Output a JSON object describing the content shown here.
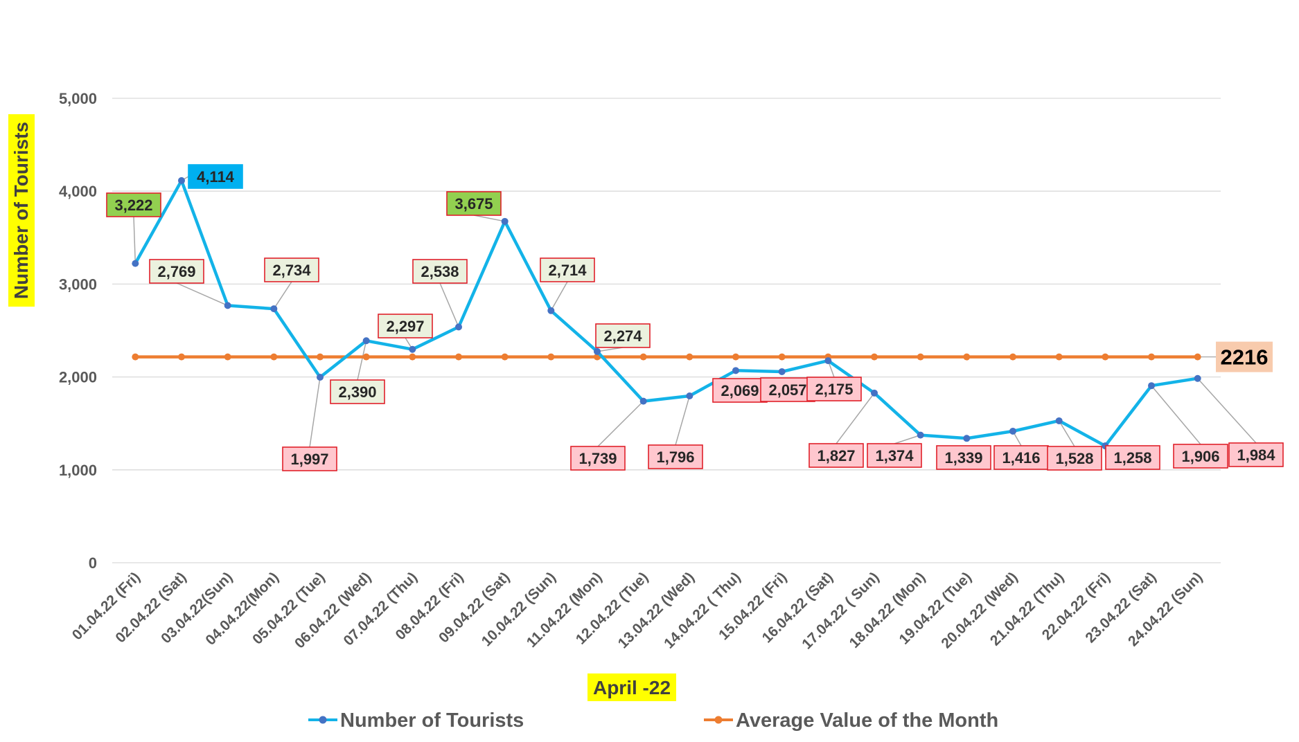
{
  "chart_data": {
    "type": "line",
    "xlabel": "April -22",
    "ylabel": "Number of Tourists",
    "ylim": [
      0,
      5000
    ],
    "yticks": [
      "0",
      "1,000",
      "2,000",
      "3,000",
      "4,000",
      "5,000"
    ],
    "grid": "horizontal",
    "legend_position": "bottom",
    "categories": [
      "01.04.22 (Fri)",
      "02.04.22 (Sat)",
      "03.04.22(Sun)",
      "04.04.22(Mon)",
      "05.04.22 (Tue)",
      "06.04.22 (Wed)",
      "07.04.22 (Thu)",
      "08.04.22 (Fri)",
      "09.04.22 (Sat)",
      "10.04.22 (Sun)",
      "11.04.22 (Mon)",
      "12.04.22 (Tue)",
      "13.04.22 (Wed)",
      "14.04.22 ( Thu)",
      "15.04.22 (Fri)",
      "16.04.22 (Sat)",
      "17.04.22 ( Sun)",
      "18.04.22 (Mon)",
      "19.04.22 (Tue)",
      "20.04.22 (Wed)",
      "21.04.22 (Thu)",
      "22.04.22 (Fri)",
      "23.04.22 (Sat)",
      "24.04.22 (Sun)"
    ],
    "series": [
      {
        "name": "Number of Tourists",
        "color": "#13B3E8",
        "marker_color": "#4472C4",
        "values": [
          3222,
          4114,
          2769,
          2734,
          1997,
          2390,
          2297,
          2538,
          3675,
          2714,
          2274,
          1739,
          1796,
          2069,
          2057,
          2175,
          1827,
          1374,
          1339,
          1416,
          1528,
          1258,
          1906,
          1984
        ],
        "labels": [
          "3,222",
          "4,114",
          "2,769",
          "2,734",
          "1,997",
          "2,390",
          "2,297",
          "2,538",
          "3,675",
          "2,714",
          "2,274",
          "1,739",
          "1,796",
          "2,069",
          "2,057",
          "2,175",
          "1,827",
          "1,374",
          "1,339",
          "1,416",
          "1,528",
          "1,258",
          "1,906",
          "1,984"
        ]
      },
      {
        "name": "Average Value of the Month",
        "color": "#ED7D31",
        "value": 2216,
        "label": "2216"
      }
    ],
    "label_colors": {
      "top_peak": "#00B0F0",
      "high": "#92D050",
      "above_average": "#EBF1DE",
      "below_average": "#FFC7CE",
      "average": "#F8CBAD",
      "label_border": "#E0202A"
    },
    "axis_title_highlight": "#FFFF00"
  }
}
